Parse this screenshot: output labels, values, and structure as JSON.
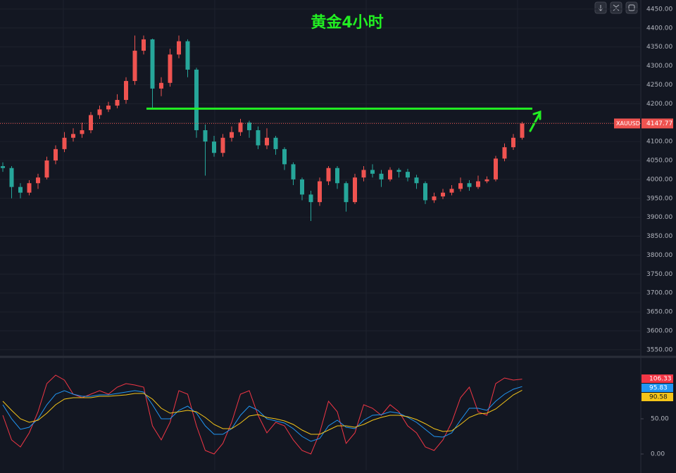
{
  "chart_data": [
    {
      "type": "candlestick",
      "title": "黄金4小时",
      "symbol": "XAUUSD",
      "up_color": "#ef5350",
      "down_color": "#26a69a",
      "open": [
        4035,
        4030,
        3980,
        3965,
        3990,
        4005,
        4050,
        4080,
        4110,
        4120,
        4130,
        4170,
        4185,
        4195,
        4210,
        4260,
        4340,
        4370,
        4240,
        4255,
        4330,
        4365,
        4290,
        4130,
        4100,
        4070,
        4110,
        4125,
        4150,
        4130,
        4090,
        4110,
        4080,
        4040,
        4000,
        3960,
        3940,
        3995,
        4030,
        3990,
        3940,
        4005,
        4025,
        4015,
        4000,
        4025,
        4020,
        4005,
        3990,
        3945,
        3955,
        3965,
        3975,
        3990,
        3980,
        3995,
        4000,
        4055,
        4085,
        4110
      ],
      "high": [
        4045,
        4035,
        3990,
        3998,
        4015,
        4060,
        4090,
        4125,
        4135,
        4150,
        4178,
        4195,
        4205,
        4225,
        4270,
        4380,
        4380,
        4372,
        4270,
        4345,
        4380,
        4370,
        4295,
        4145,
        4115,
        4120,
        4140,
        4160,
        4155,
        4140,
        4135,
        4115,
        4085,
        4045,
        4005,
        3970,
        4005,
        4035,
        4035,
        3995,
        4015,
        4035,
        4040,
        4025,
        4032,
        4030,
        4028,
        4012,
        3995,
        3965,
        3975,
        3985,
        4005,
        3998,
        4010,
        4008,
        4062,
        4095,
        4120,
        4152
      ],
      "low": [
        4020,
        3950,
        3950,
        3958,
        3975,
        4000,
        4040,
        4072,
        4100,
        4110,
        4122,
        4160,
        4178,
        4188,
        4200,
        4250,
        4330,
        4185,
        4220,
        4245,
        4320,
        4270,
        4110,
        4010,
        4060,
        4060,
        4100,
        4115,
        4110,
        4080,
        4080,
        4065,
        4025,
        3985,
        3945,
        3890,
        3930,
        3985,
        3975,
        3915,
        3935,
        3995,
        4005,
        3980,
        3995,
        4005,
        3995,
        3975,
        3935,
        3938,
        3948,
        3958,
        3968,
        3970,
        3975,
        3990,
        3995,
        4048,
        4078,
        4105
      ],
      "close": [
        4030,
        3980,
        3965,
        3990,
        4005,
        4050,
        4080,
        4110,
        4120,
        4130,
        4170,
        4185,
        4195,
        4210,
        4260,
        4340,
        4370,
        4240,
        4255,
        4330,
        4365,
        4290,
        4130,
        4100,
        4070,
        4110,
        4125,
        4150,
        4130,
        4090,
        4110,
        4080,
        4040,
        4000,
        3960,
        3940,
        3995,
        4030,
        3990,
        3940,
        4005,
        4025,
        4015,
        4000,
        4025,
        4020,
        4005,
        3990,
        3945,
        3955,
        3965,
        3975,
        3990,
        3980,
        3995,
        4000,
        4055,
        4085,
        4110,
        4147.77
      ],
      "hline": 4187,
      "hline_color": "#22ee22",
      "ylim": [
        3533,
        4474
      ],
      "yticks": [
        {
          "value": 3550,
          "label": "3550.00"
        },
        {
          "value": 3600,
          "label": "3600.00"
        },
        {
          "value": 3650,
          "label": "3650.00"
        },
        {
          "value": 3700,
          "label": "3700.00"
        },
        {
          "value": 3750,
          "label": "3750.00"
        },
        {
          "value": 3800,
          "label": "3800.00"
        },
        {
          "value": 3850,
          "label": "3850.00"
        },
        {
          "value": 3900,
          "label": "3900.00"
        },
        {
          "value": 3950,
          "label": "3950.00"
        },
        {
          "value": 4000,
          "label": "4000.00"
        },
        {
          "value": 4050,
          "label": "4050.00"
        },
        {
          "value": 4100,
          "label": "4100.00"
        },
        {
          "value": 4150,
          "label": "4150.00"
        },
        {
          "value": 4200,
          "label": "4200.00"
        },
        {
          "value": 4250,
          "label": "4250.00"
        },
        {
          "value": 4300,
          "label": "4300.00"
        },
        {
          "value": 4350,
          "label": "4350.00"
        },
        {
          "value": 4400,
          "label": "4400.00"
        },
        {
          "value": 4450,
          "label": "4450.00"
        }
      ],
      "grid": true
    },
    {
      "type": "line",
      "series": [
        {
          "color": "#f23645",
          "values": [
            55,
            20,
            10,
            30,
            60,
            100,
            112,
            105,
            85,
            80,
            85,
            90,
            85,
            95,
            100,
            98,
            95,
            40,
            20,
            45,
            90,
            85,
            40,
            5,
            0,
            15,
            45,
            85,
            90,
            55,
            30,
            45,
            40,
            20,
            5,
            0,
            30,
            75,
            60,
            15,
            30,
            70,
            65,
            55,
            70,
            60,
            40,
            30,
            10,
            5,
            20,
            45,
            80,
            95,
            60,
            55,
            100,
            108,
            105,
            106.33
          ]
        },
        {
          "color": "#2196f3",
          "values": [
            70,
            50,
            35,
            38,
            50,
            70,
            85,
            90,
            85,
            82,
            82,
            84,
            84,
            86,
            88,
            90,
            88,
            70,
            50,
            50,
            62,
            68,
            58,
            40,
            28,
            28,
            36,
            55,
            68,
            62,
            50,
            47,
            44,
            36,
            25,
            18,
            22,
            40,
            48,
            38,
            36,
            48,
            55,
            56,
            60,
            58,
            52,
            45,
            35,
            25,
            24,
            30,
            48,
            65,
            65,
            62,
            75,
            85,
            92,
            95.83
          ]
        },
        {
          "color": "#f5c518",
          "values": [
            75,
            62,
            50,
            45,
            48,
            58,
            70,
            78,
            80,
            80,
            80,
            82,
            82,
            83,
            84,
            86,
            86,
            78,
            65,
            58,
            60,
            62,
            60,
            52,
            42,
            36,
            36,
            44,
            54,
            56,
            52,
            50,
            47,
            42,
            34,
            28,
            28,
            34,
            40,
            40,
            38,
            42,
            48,
            52,
            55,
            55,
            53,
            49,
            43,
            36,
            32,
            33,
            42,
            52,
            57,
            58,
            64,
            74,
            84,
            90.58
          ]
        }
      ],
      "ylim": [
        -23,
        135
      ],
      "yticks": [
        {
          "value": 0,
          "label": "0.00"
        },
        {
          "value": 50,
          "label": "50.00"
        }
      ]
    }
  ]
}
